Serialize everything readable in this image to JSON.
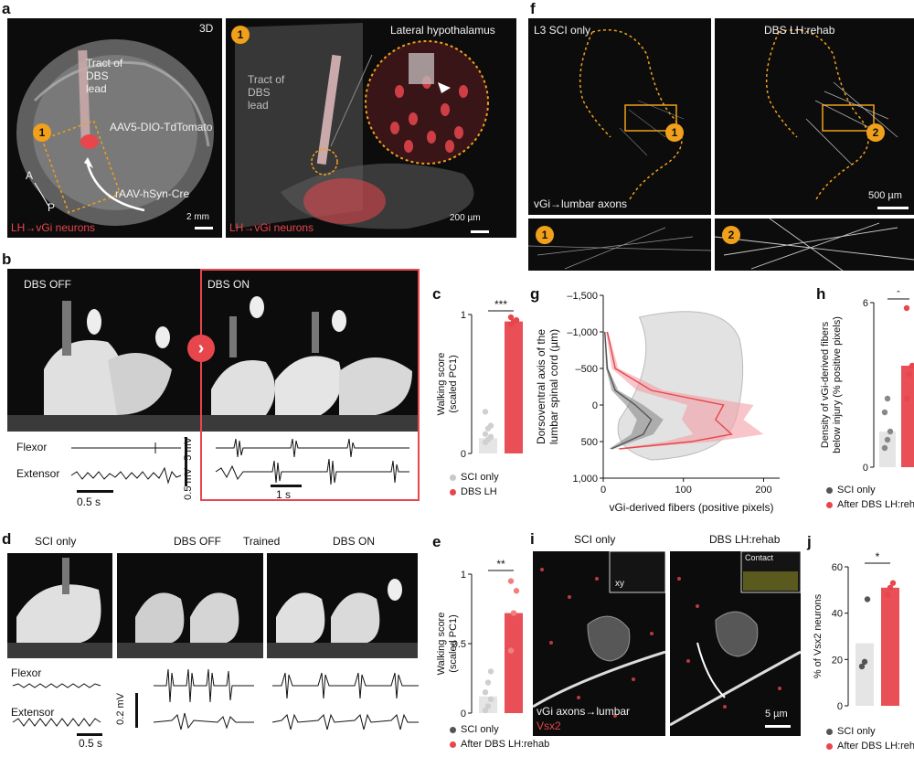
{
  "colors": {
    "red": "#e8464d",
    "grey": "#c9c9c9",
    "darkgrey": "#555555",
    "orange": "#f0a01a"
  },
  "panel_a": {
    "letter": "a",
    "left": {
      "view": "3D",
      "badge": "1",
      "tract": "Tract of\nDBS\nlead",
      "virus1": "AAV5-DIO-TdTomato",
      "virus2": "rAAV-hSyn-Cre",
      "axis_a": "A",
      "axis_p": "P",
      "neurons": "LH→vGi neurons",
      "scale": "2 mm"
    },
    "right": {
      "badge": "1",
      "title": "Lateral hypothalamus",
      "tract": "Tract of\nDBS\nlead",
      "neurons": "LH→vGi neurons",
      "scale": "200 µm"
    }
  },
  "panel_b": {
    "letter": "b",
    "off": "DBS OFF",
    "on": "DBS ON",
    "flexor": "Flexor",
    "extensor": "Extensor",
    "scale_mv1": "5 mV",
    "scale_mv2": "0.5 mV",
    "scale_t1": "0.5 s",
    "scale_t2": "1 s"
  },
  "panel_c": {
    "letter": "c",
    "chart_data": {
      "type": "bar",
      "ylabel": "Walking score\n(scaled PC1)",
      "ylim": [
        0,
        1
      ],
      "yticks": [
        "0",
        "1"
      ],
      "categories": [
        "SCI only",
        "DBS LH"
      ],
      "values": [
        0.11,
        0.95
      ],
      "points": [
        [
          0.08,
          0.1,
          0.12,
          0.14,
          0.18,
          0.2,
          0.3
        ],
        [
          0.93,
          0.95,
          0.96,
          0.98
        ]
      ],
      "significance": "***"
    },
    "legend": [
      "SCI only",
      "DBS LH"
    ]
  },
  "panel_d": {
    "letter": "d",
    "sci": "SCI only",
    "off": "DBS OFF",
    "trained": "Trained",
    "on": "DBS ON",
    "flexor": "Flexor",
    "extensor": "Extensor",
    "scale_mv": "0.2 mV",
    "scale_t": "0.5 s"
  },
  "panel_e": {
    "letter": "e",
    "chart_data": {
      "type": "bar",
      "ylabel": "Walking score\n(scaled PC1)",
      "ylim": [
        0,
        1
      ],
      "yticks": [
        "0",
        "0.5",
        "1"
      ],
      "categories": [
        "SCI only",
        "After DBS LH:rehab"
      ],
      "values": [
        0.12,
        0.72
      ],
      "points": [
        [
          0.02,
          0.05,
          0.1,
          0.15,
          0.22,
          0.3
        ],
        [
          0.45,
          0.72,
          0.88,
          0.95
        ]
      ],
      "significance": "**"
    },
    "legend": [
      "SCI only",
      "After DBS LH:rehab"
    ]
  },
  "panel_f": {
    "letter": "f",
    "left_title": "L3  SCI only",
    "right_title": "DBS LH:rehab",
    "axons": "vGi→lumbar axons",
    "scale": "500 µm",
    "badge1": "1",
    "badge2": "2"
  },
  "panel_g": {
    "letter": "g",
    "chart_data": {
      "type": "area",
      "xlabel": "vGi-derived fibers (positive pixels)",
      "ylabel": "Dorsoventral axis of the\nlumbar spinal cord (µm)",
      "xlim": [
        0,
        220
      ],
      "ylim": [
        -1500,
        1000
      ],
      "xticks": [
        0,
        100,
        200
      ],
      "yticks": [
        -1500,
        -1000,
        -500,
        0,
        500,
        1000
      ],
      "series": [
        {
          "name": "SCI only",
          "y": [
            -1000,
            -500,
            -200,
            0,
            200,
            400,
            500,
            600
          ],
          "x": [
            2,
            5,
            15,
            40,
            60,
            50,
            30,
            10
          ]
        },
        {
          "name": "DBS LH",
          "y": [
            -1000,
            -500,
            -200,
            0,
            200,
            400,
            500,
            600
          ],
          "x": [
            5,
            15,
            60,
            150,
            140,
            160,
            110,
            20
          ]
        }
      ]
    }
  },
  "panel_h": {
    "letter": "h",
    "chart_data": {
      "type": "bar",
      "ylabel": "Density of vGi-derived fibers\nbelow injury (% positive pixels)",
      "ylim": [
        0,
        6
      ],
      "yticks": [
        "0",
        "6"
      ],
      "categories": [
        "SCI only",
        "After DBS LH:rehab"
      ],
      "values": [
        1.3,
        3.7
      ],
      "points": [
        [
          0.7,
          1.0,
          1.3,
          2.0,
          2.5
        ],
        [
          2.5,
          3.4,
          3.7,
          5.8
        ]
      ],
      "significance": "*"
    },
    "legend": [
      "SCI only",
      "After DBS LH:rehab"
    ]
  },
  "panel_i": {
    "letter": "i",
    "left_title": "SCI only",
    "right_title": "DBS LH:rehab",
    "inset_xy": "xy",
    "inset_contact": "Contact",
    "axons": "vGi axons→lumbar",
    "vsx2": "Vsx2",
    "scale": "5 µm"
  },
  "panel_j": {
    "letter": "j",
    "chart_data": {
      "type": "bar",
      "ylabel": "% of Vsx2 neurons",
      "ylim": [
        0,
        60
      ],
      "yticks": [
        "0",
        "20",
        "40",
        "60"
      ],
      "categories": [
        "SCI only",
        "After DBS LH:rehab"
      ],
      "values": [
        27,
        51
      ],
      "points": [
        [
          17,
          19,
          46
        ],
        [
          48,
          51,
          53
        ]
      ],
      "significance": "*"
    },
    "legend": [
      "SCI only",
      "After DBS LH:rehab"
    ]
  }
}
